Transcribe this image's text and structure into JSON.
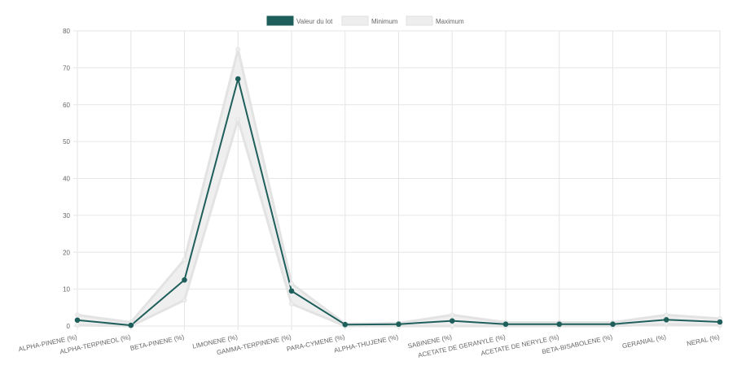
{
  "chart_data": {
    "type": "line",
    "categories": [
      "ALPHA-PINENE (%)",
      "ALPHA-TERPINEOL (%)",
      "BETA-PINENE (%)",
      "LIMONENE (%)",
      "GAMMA-TERPINENE (%)",
      "PARA-CYMENE (%)",
      "ALPHA-THUJENE (%)",
      "SABINENE (%)",
      "ACETATE DE GERANYLE (%)",
      "ACETATE DE NERYLE (%)",
      "BETA-BISABOLENE (%)",
      "GERANIAL (%)",
      "NERAL (%)"
    ],
    "series": [
      {
        "name": "Valeur du lot",
        "values": [
          1.6,
          0.2,
          12.5,
          67,
          9.5,
          0.4,
          0.5,
          1.4,
          0.5,
          0.5,
          0.5,
          1.7,
          1.1
        ],
        "color": "#1f5f5b"
      },
      {
        "name": "Minimum",
        "values": [
          0.2,
          0,
          7,
          56,
          6,
          0,
          0,
          0,
          0,
          0,
          0,
          0.5,
          0.2
        ],
        "color": "#e8e8e8"
      },
      {
        "name": "Maximum",
        "values": [
          3,
          1,
          18,
          75,
          11.5,
          0.6,
          0.8,
          3,
          1,
          1,
          1,
          3,
          2
        ],
        "color": "#e8e8e8"
      }
    ],
    "ylim": [
      0,
      80
    ],
    "yticks": [
      0,
      10,
      20,
      30,
      40,
      50,
      60,
      70,
      80
    ],
    "grid": true,
    "legend_position": "top-center"
  }
}
